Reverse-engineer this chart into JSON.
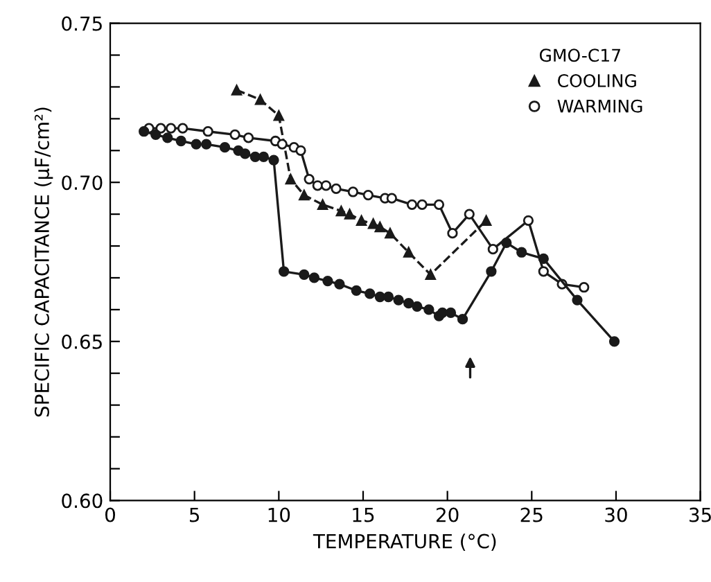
{
  "chart_data": {
    "type": "line",
    "xlabel": "TEMPERATURE (°C)",
    "ylabel": "SPECIFIC CAPACITANCE (μF/cm²)",
    "legend_title": "GMO-C17",
    "legend": "top right",
    "grid": false,
    "xlim": [
      0,
      35
    ],
    "ylim": [
      0.6,
      0.75
    ],
    "xticks": [
      0,
      5,
      10,
      15,
      20,
      25,
      30,
      35
    ],
    "yticks": [
      {
        "value": 0.6,
        "label": "0.60"
      },
      {
        "value": 0.61,
        "label": null
      },
      {
        "value": 0.62,
        "label": null
      },
      {
        "value": 0.63,
        "label": null
      },
      {
        "value": 0.64,
        "label": null
      },
      0.65,
      {
        "value": 0.66,
        "label": null
      },
      {
        "value": 0.67,
        "label": null
      },
      {
        "value": 0.68,
        "label": null
      },
      {
        "value": 0.69,
        "label": null
      },
      {
        "value": 0.7,
        "label": "0.70"
      },
      {
        "value": 0.71,
        "label": null
      },
      {
        "value": 0.72,
        "label": null
      },
      {
        "value": 0.73,
        "label": null
      },
      {
        "value": 0.74,
        "label": null
      },
      0.75
    ],
    "series": [
      {
        "name": "COOLING",
        "color": "#1a1a1a",
        "marker": "triangle",
        "line_style": "dashed",
        "x": [
          7.5,
          8.9,
          10.0,
          10.7,
          11.5,
          12.6,
          13.7,
          14.2,
          14.9,
          15.6,
          16.0,
          16.6,
          17.7,
          19.0,
          22.3
        ],
        "values": [
          0.729,
          0.726,
          0.721,
          0.701,
          0.696,
          0.693,
          0.691,
          0.69,
          0.688,
          0.687,
          0.686,
          0.684,
          0.678,
          0.671,
          0.688
        ]
      },
      {
        "name": "WARMING",
        "color": "#1a1a1a",
        "marker": "open circle",
        "line_style": "solid",
        "x": [
          2.3,
          3.0,
          3.6,
          4.3,
          5.8,
          7.4,
          8.2,
          9.8,
          10.2,
          10.9,
          11.3,
          11.8,
          12.3,
          12.8,
          13.4,
          14.4,
          15.3,
          16.3,
          16.7,
          17.9,
          18.5,
          19.5,
          20.3,
          21.3,
          22.7,
          24.8,
          25.7,
          26.8,
          28.1
        ],
        "values": [
          0.717,
          0.717,
          0.717,
          0.717,
          0.716,
          0.715,
          0.714,
          0.713,
          0.712,
          0.711,
          0.71,
          0.701,
          0.699,
          0.699,
          0.698,
          0.697,
          0.696,
          0.695,
          0.695,
          0.693,
          0.693,
          0.693,
          0.684,
          0.69,
          0.679,
          0.688,
          0.672,
          0.668,
          0.667
        ]
      },
      {
        "color": "#1a1a1a",
        "marker": "circle",
        "line_style": "solid",
        "x": [
          2.0,
          2.7,
          3.4,
          4.2,
          5.1,
          5.7,
          6.8,
          7.6,
          8.0,
          8.6,
          9.1,
          9.7,
          10.3,
          11.5,
          12.1,
          12.9,
          13.6,
          14.6,
          15.4,
          16.0,
          16.5,
          17.1,
          17.7,
          18.2,
          18.9,
          19.5,
          19.7,
          20.2,
          20.9,
          22.6,
          23.5,
          24.4,
          25.7,
          27.7,
          29.9
        ],
        "values": [
          0.716,
          0.715,
          0.714,
          0.713,
          0.712,
          0.712,
          0.711,
          0.71,
          0.709,
          0.708,
          0.708,
          0.707,
          0.672,
          0.671,
          0.67,
          0.669,
          0.668,
          0.666,
          0.665,
          0.664,
          0.664,
          0.663,
          0.662,
          0.661,
          0.66,
          0.658,
          0.659,
          0.659,
          0.657,
          0.672,
          0.681,
          0.678,
          0.676,
          0.663,
          0.65
        ]
      }
    ]
  }
}
